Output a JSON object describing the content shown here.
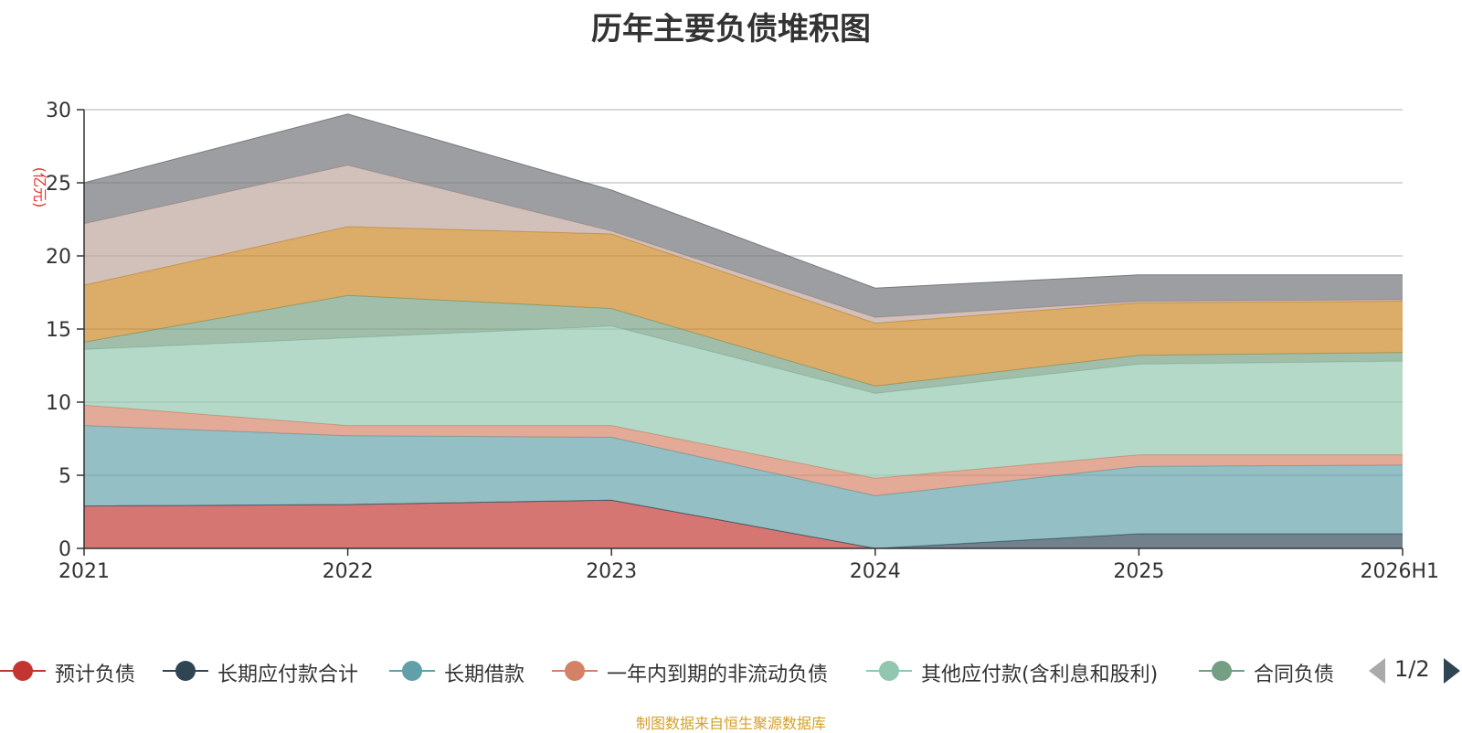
{
  "title": "历年主要负债堆积图",
  "source_note": "制图数据来自恒生聚源数据库",
  "pager": {
    "text": "1/2"
  },
  "chart_data": {
    "type": "area",
    "stacked": true,
    "title": "历年主要负债堆积图",
    "ylabel": "(亿元)",
    "xlabel": "",
    "categories": [
      "2021",
      "2022",
      "2023",
      "2024",
      "2025",
      "2026H1"
    ],
    "ylim": [
      0,
      30
    ],
    "yticks": [
      0,
      5,
      10,
      15,
      20,
      25,
      30
    ],
    "grid": true,
    "legend_position": "bottom",
    "series": [
      {
        "name": "预计负债",
        "color": "#c23531",
        "values": [
          2.9,
          3.0,
          3.3,
          0.0,
          0.0,
          0.0
        ]
      },
      {
        "name": "长期应付款合计",
        "color": "#2f4554",
        "values": [
          0.0,
          0.0,
          0.0,
          0.0,
          1.0,
          1.0
        ]
      },
      {
        "name": "长期借款",
        "color": "#61a0a8",
        "values": [
          5.5,
          4.7,
          4.3,
          3.6,
          4.6,
          4.7
        ]
      },
      {
        "name": "一年内到期的非流动负债",
        "color": "#d48265",
        "values": [
          1.4,
          0.7,
          0.8,
          1.2,
          0.8,
          0.7
        ]
      },
      {
        "name": "其他应付款(含利息和股利)",
        "color": "#91c7ae",
        "values": [
          3.8,
          6.0,
          6.8,
          5.8,
          6.2,
          6.4
        ]
      },
      {
        "name": "合同负债",
        "color": "#749f83",
        "values": [
          0.5,
          2.9,
          1.2,
          0.5,
          0.6,
          0.6
        ]
      },
      {
        "name": "",
        "color": "#ca8622",
        "values": [
          3.9,
          4.7,
          5.1,
          4.3,
          3.6,
          3.5
        ]
      },
      {
        "name": "",
        "color": "#bda29a",
        "values": [
          4.2,
          4.2,
          0.2,
          0.4,
          0.1,
          0.1
        ]
      },
      {
        "name": "",
        "color": "#6e7074",
        "values": [
          2.8,
          3.5,
          2.8,
          2.0,
          1.8,
          1.7
        ]
      }
    ]
  }
}
